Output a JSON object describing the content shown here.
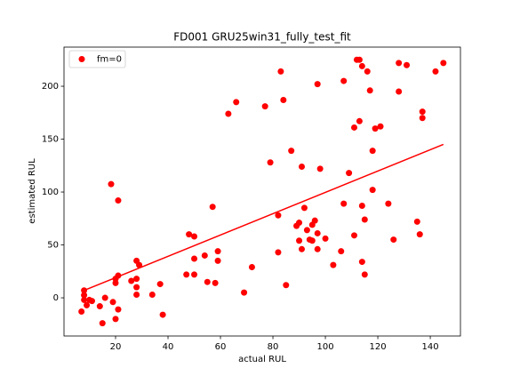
{
  "chart_data": {
    "type": "scatter",
    "title": "FD001 GRU25win31_fully_test_fit",
    "x_label": "actual RUL",
    "y_label": "estimated RUL",
    "xlim": [
      0.34,
      151.5
    ],
    "ylim": [
      -36.1,
      237
    ],
    "xticks": [
      20,
      40,
      60,
      80,
      100,
      120,
      140
    ],
    "yticks": [
      0,
      50,
      100,
      150,
      200
    ],
    "legend": "upper left",
    "series": [
      {
        "name": "fm=0",
        "color": "#ff0000",
        "x": [
          8,
          8,
          8,
          7,
          9,
          10,
          11,
          14,
          15,
          16,
          18.3,
          19,
          20,
          20,
          20,
          21,
          21,
          21,
          26,
          28,
          28,
          28,
          28,
          29,
          34,
          37,
          38,
          47,
          48,
          50,
          50,
          50,
          54,
          55,
          57,
          58,
          59,
          59,
          63,
          66,
          69,
          72,
          77,
          79,
          82,
          82,
          83,
          84,
          85,
          87,
          89,
          90,
          90,
          91,
          91,
          92,
          93,
          94,
          95,
          95,
          96,
          97,
          97,
          97,
          98,
          100,
          103,
          106,
          107,
          107,
          109,
          111,
          111,
          112,
          113,
          113,
          114,
          114,
          114,
          115,
          115,
          116,
          117,
          118,
          118,
          119,
          121,
          124,
          126,
          128,
          128,
          131,
          135,
          136,
          137,
          137,
          142,
          145
        ],
        "values": [
          7,
          2.5,
          -2,
          -13,
          -7,
          -2,
          -3,
          -8,
          -24,
          0,
          107.5,
          -4,
          -20,
          14,
          18,
          21,
          92,
          -11,
          16,
          18,
          35,
          10,
          3,
          31,
          3,
          13,
          -16,
          22,
          60,
          58,
          37,
          22,
          40,
          15,
          86,
          14,
          44,
          35,
          174,
          185,
          5,
          29,
          181,
          128,
          78,
          43,
          214,
          187,
          12,
          139,
          68,
          71,
          54,
          124,
          46,
          85,
          64,
          55,
          69,
          54,
          73,
          202,
          61,
          46,
          122,
          56,
          31,
          44,
          205,
          89,
          118,
          161,
          59,
          225,
          225,
          167,
          87,
          34,
          219,
          74,
          22,
          214,
          196,
          139,
          102,
          160,
          162,
          89,
          55,
          222,
          195,
          220,
          72,
          60,
          176,
          170,
          214,
          222
        ]
      }
    ],
    "fit": {
      "color": "#ff0000",
      "x": [
        8,
        145
      ],
      "values": [
        7,
        145
      ]
    }
  }
}
